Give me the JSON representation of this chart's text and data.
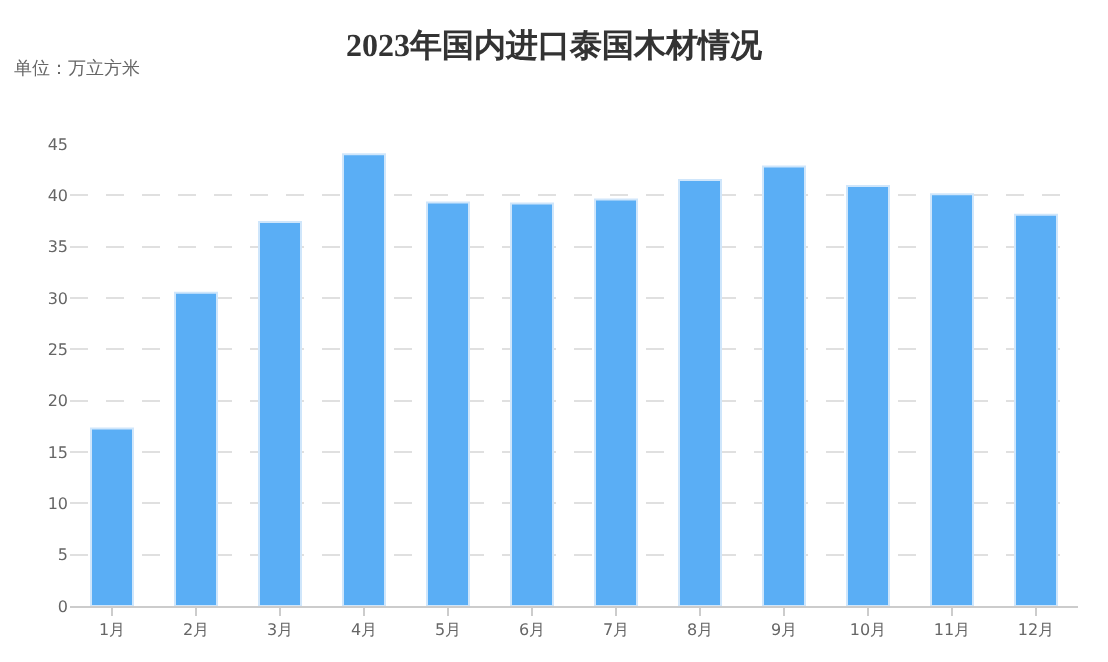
{
  "chart_data": {
    "type": "bar",
    "title": "2023年国内进口泰国木材情况",
    "subtitle": "单位：万立方米",
    "categories": [
      "1月",
      "2月",
      "3月",
      "4月",
      "5月",
      "6月",
      "7月",
      "8月",
      "9月",
      "10月",
      "11月",
      "12月"
    ],
    "values": [
      17.3,
      30.5,
      37.4,
      44.0,
      39.3,
      39.2,
      39.6,
      41.5,
      42.8,
      40.9,
      40.1,
      38.1
    ],
    "color": "#5aaef5",
    "ylim": [
      0,
      45
    ],
    "yticks": [
      0,
      5,
      10,
      15,
      20,
      25,
      30,
      35,
      40,
      45
    ],
    "grid": "y"
  }
}
